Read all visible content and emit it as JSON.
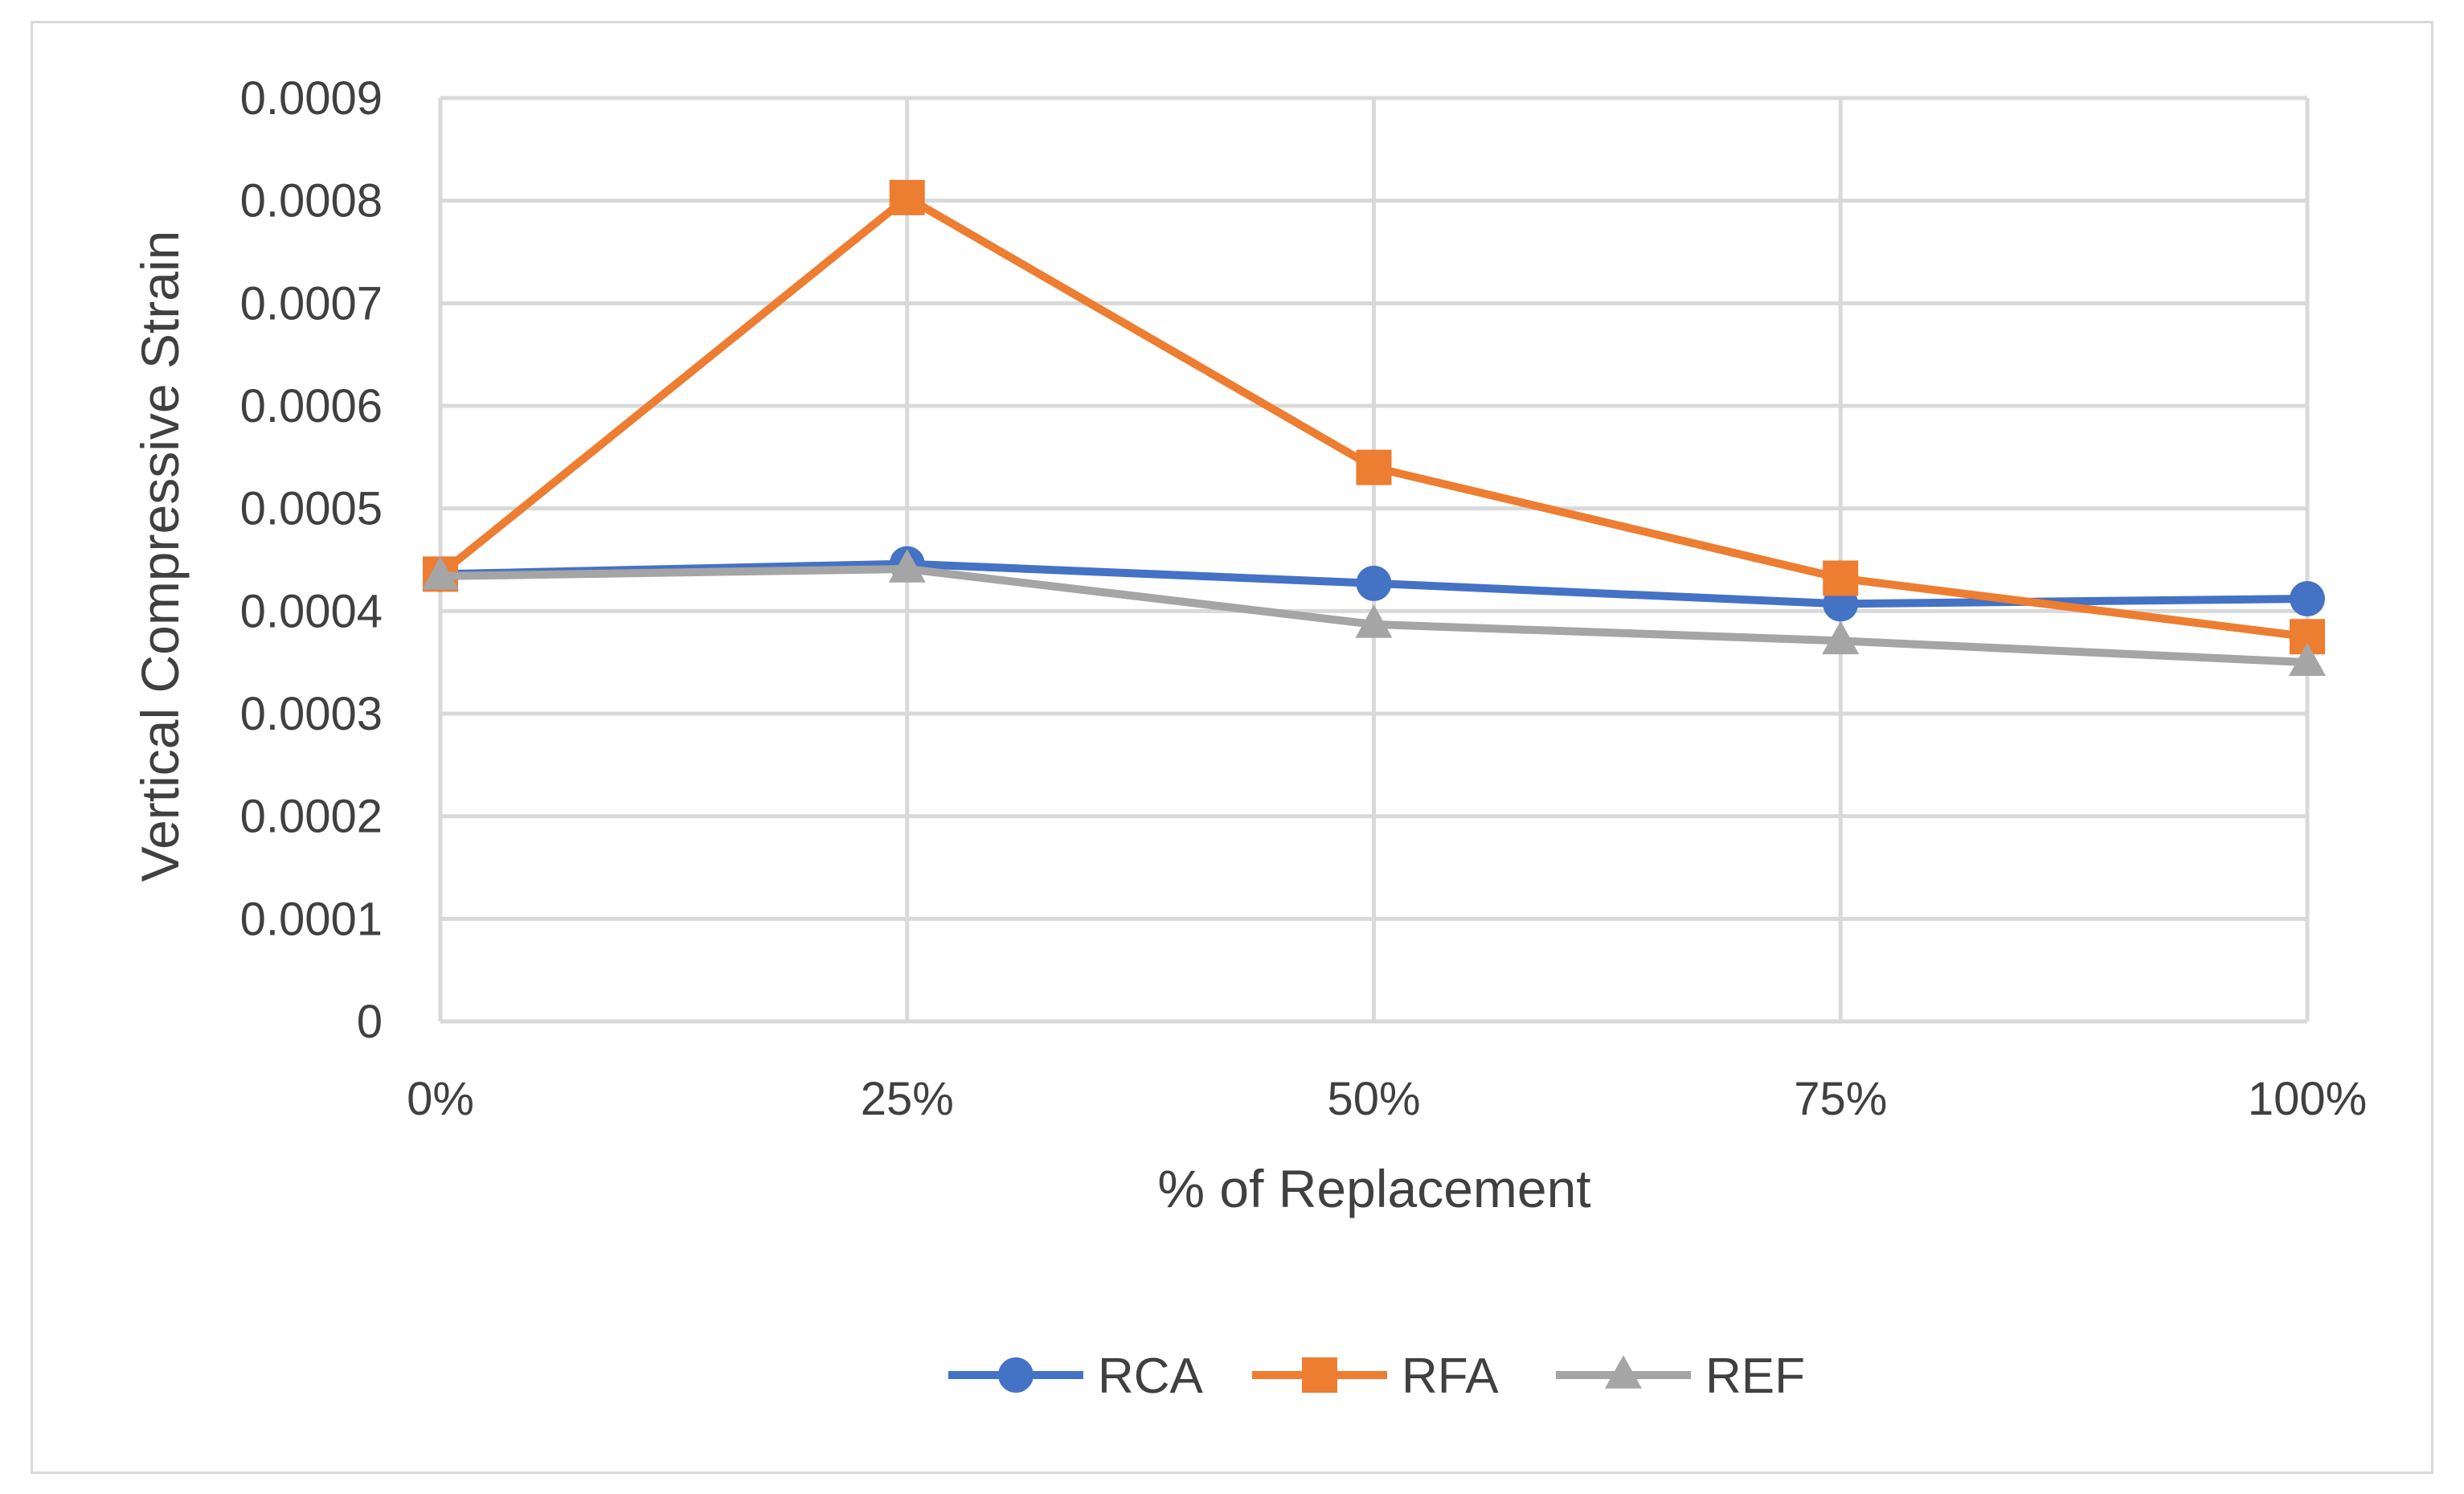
{
  "chart_data": {
    "type": "line",
    "title": "",
    "xlabel": "% of Replacement",
    "ylabel": "Vertical Compressive Strain",
    "categories": [
      "0%",
      "25%",
      "50%",
      "75%",
      "100%"
    ],
    "ylim": [
      0,
      0.0009
    ],
    "yticks": [
      "0",
      "0.0001",
      "0.0002",
      "0.0003",
      "0.0004",
      "0.0005",
      "0.0006",
      "0.0007",
      "0.0008",
      "0.0009"
    ],
    "ytick_values": [
      0,
      0.0001,
      0.0002,
      0.0003,
      0.0004,
      0.0005,
      0.0006,
      0.0007,
      0.0008,
      0.0009
    ],
    "grid": true,
    "legend_position": "bottom",
    "series": [
      {
        "name": "RCA",
        "color": "#4472c4",
        "marker": "circle",
        "values": [
          0.000436,
          0.000446,
          0.000427,
          0.000407,
          0.000412
        ]
      },
      {
        "name": "RFA",
        "color": "#ed7d31",
        "marker": "square",
        "values": [
          0.000436,
          0.000803,
          0.00054,
          0.000432,
          0.000375
        ]
      },
      {
        "name": "REF",
        "color": "#a5a5a5",
        "marker": "triangle",
        "values": [
          0.000434,
          0.000441,
          0.000387,
          0.000371,
          0.00035
        ]
      }
    ]
  }
}
